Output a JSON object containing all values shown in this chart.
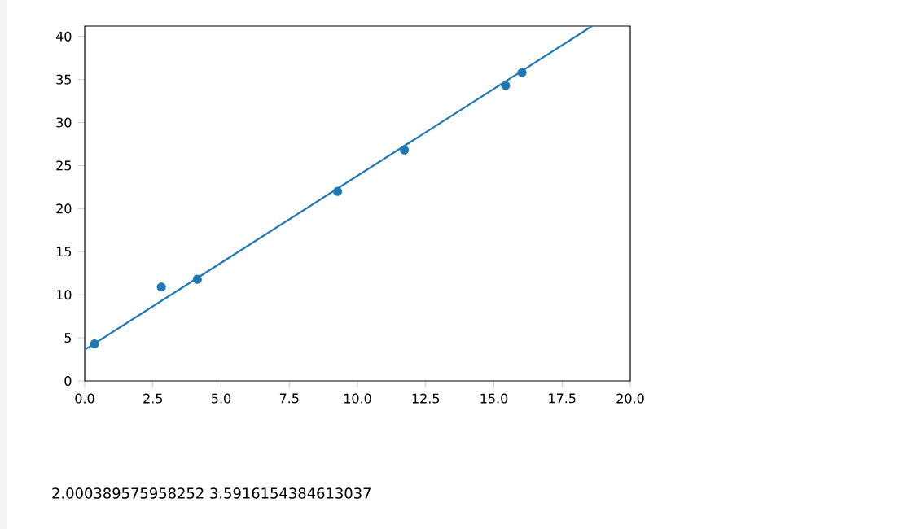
{
  "chart_data": {
    "type": "scatter",
    "xlim": [
      0,
      20
    ],
    "ylim": [
      0,
      41.2
    ],
    "xticks": [
      {
        "value": 0,
        "label": "0.0"
      },
      {
        "value": 2.5,
        "label": "2.5"
      },
      {
        "value": 5,
        "label": "5.0"
      },
      {
        "value": 7.5,
        "label": "7.5"
      },
      {
        "value": 10,
        "label": "10.0"
      },
      {
        "value": 12.5,
        "label": "12.5"
      },
      {
        "value": 15,
        "label": "15.0"
      },
      {
        "value": 17.5,
        "label": "17.5"
      },
      {
        "value": 20,
        "label": "20.0"
      }
    ],
    "yticks": [
      0,
      5,
      10,
      15,
      20,
      25,
      30,
      35,
      40
    ],
    "series": [
      {
        "color": "#1f77b4",
        "marker": "circle",
        "x": [
          0.36,
          2.81,
          4.13,
          9.27,
          11.72,
          15.43,
          16.03
        ],
        "values": [
          4.3,
          10.9,
          11.8,
          22.0,
          26.8,
          34.3,
          35.8
        ]
      },
      {
        "type": "line",
        "color": "#1f77b4",
        "marker": "none",
        "x": [
          0,
          18.6
        ],
        "values": [
          3.6,
          41.2
        ]
      }
    ],
    "annotations": [
      "2.000389575958252 3.5916154384613037"
    ]
  }
}
